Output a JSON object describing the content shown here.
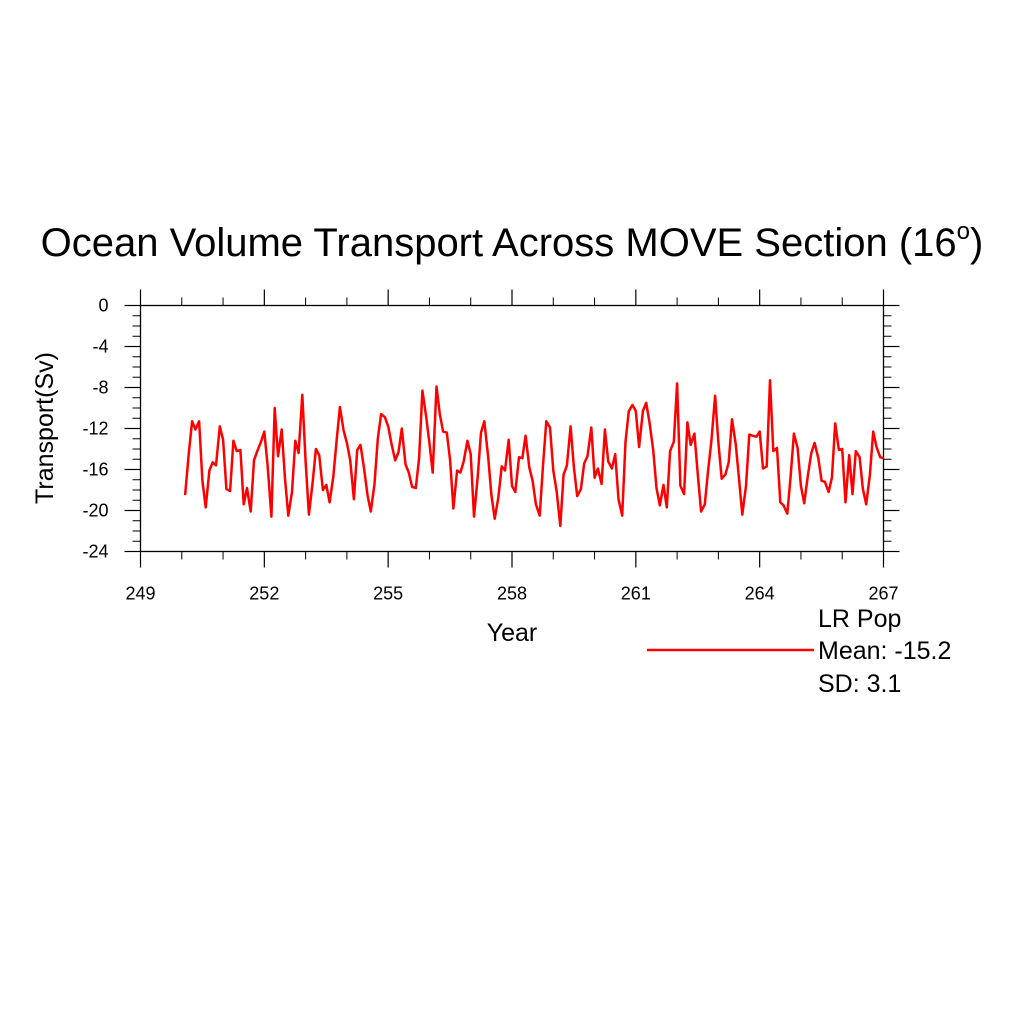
{
  "chart_data": {
    "type": "line",
    "title": "Ocean Volume Transport Across MOVE Section (16",
    "title_degree": "o",
    "title_close": ")",
    "xlabel": "Year",
    "ylabel": "Transport(Sv)",
    "xlim": [
      249,
      267
    ],
    "ylim": [
      -24,
      0
    ],
    "xticks": [
      249,
      252,
      255,
      258,
      261,
      264,
      267
    ],
    "yticks": [
      0,
      -4,
      -8,
      -12,
      -16,
      -20,
      -24
    ],
    "grid": false,
    "legend": {
      "placement": "bottom-right",
      "label": "LR Pop",
      "mean_text": "Mean: -15.2",
      "sd_text": "SD: 3.1"
    },
    "series": [
      {
        "name": "LR Pop",
        "color": "#ff0000",
        "x": [
          250.08,
          250.17,
          250.25,
          250.33,
          250.42,
          250.5,
          250.58,
          250.67,
          250.75,
          250.83,
          250.92,
          251.0,
          251.08,
          251.17,
          251.25,
          251.33,
          251.42,
          251.5,
          251.58,
          251.67,
          251.75,
          251.83,
          251.92,
          252.0,
          252.08,
          252.17,
          252.25,
          252.33,
          252.42,
          252.5,
          252.58,
          252.67,
          252.75,
          252.83,
          252.92,
          253.0,
          253.08,
          253.17,
          253.25,
          253.33,
          253.42,
          253.5,
          253.58,
          253.67,
          253.75,
          253.83,
          253.92,
          254.0,
          254.08,
          254.17,
          254.25,
          254.33,
          254.42,
          254.5,
          254.58,
          254.67,
          254.75,
          254.83,
          254.92,
          255.0,
          255.08,
          255.17,
          255.25,
          255.33,
          255.42,
          255.5,
          255.58,
          255.67,
          255.75,
          255.83,
          255.92,
          256.0,
          256.08,
          256.17,
          256.25,
          256.33,
          256.42,
          256.5,
          256.58,
          256.67,
          256.75,
          256.83,
          256.92,
          257.0,
          257.08,
          257.17,
          257.25,
          257.33,
          257.42,
          257.5,
          257.58,
          257.67,
          257.75,
          257.83,
          257.92,
          258.0,
          258.08,
          258.17,
          258.25,
          258.33,
          258.42,
          258.5,
          258.58,
          258.67,
          258.75,
          258.83,
          258.92,
          259.0,
          259.08,
          259.17,
          259.25,
          259.33,
          259.42,
          259.5,
          259.58,
          259.67,
          259.75,
          259.83,
          259.92,
          260.0,
          260.08,
          260.17,
          260.25,
          260.33,
          260.42,
          260.5,
          260.58,
          260.67,
          260.75,
          260.83,
          260.92,
          261.0,
          261.08,
          261.17,
          261.25,
          261.33,
          261.42,
          261.5,
          261.58,
          261.67,
          261.75,
          261.83,
          261.92,
          262.0,
          262.08,
          262.17,
          262.25,
          262.33,
          262.42,
          262.5,
          262.58,
          262.67,
          262.75,
          262.83,
          262.92,
          263.0,
          263.08,
          263.17,
          263.25,
          263.33,
          263.42,
          263.5,
          263.58,
          263.67,
          263.75,
          263.83,
          263.92,
          264.0,
          264.08,
          264.17,
          264.25,
          264.33,
          264.42,
          264.5,
          264.58,
          264.67,
          264.75,
          264.83,
          264.92,
          265.0,
          265.08,
          265.17,
          265.25,
          265.33,
          265.42,
          265.5,
          265.58,
          265.67,
          265.75,
          265.83,
          265.92,
          266.0,
          266.08,
          266.17,
          266.25,
          266.33,
          266.42,
          266.5,
          266.58,
          266.67,
          266.75,
          266.83,
          266.92,
          267.0
        ],
        "y": [
          -18.5,
          -14.4,
          -11.3,
          -12.1,
          -11.3,
          -17.1,
          -19.7,
          -16.1,
          -15.3,
          -15.6,
          -11.8,
          -13.1,
          -17.9,
          -18.1,
          -13.2,
          -14.2,
          -14.1,
          -19.4,
          -17.8,
          -20.1,
          -15.1,
          -14.2,
          -13.3,
          -12.3,
          -15.6,
          -20.6,
          -10.0,
          -14.7,
          -12.1,
          -16.9,
          -20.5,
          -18.2,
          -13.2,
          -14.4,
          -8.7,
          -15.2,
          -20.4,
          -17.3,
          -14.0,
          -14.6,
          -18.0,
          -17.5,
          -19.2,
          -16.7,
          -13.2,
          -9.9,
          -12.2,
          -13.4,
          -15.1,
          -18.9,
          -14.1,
          -13.6,
          -16.0,
          -18.5,
          -20.1,
          -17.4,
          -13.0,
          -10.6,
          -10.9,
          -11.8,
          -13.5,
          -15.1,
          -14.3,
          -12.0,
          -15.5,
          -16.3,
          -17.7,
          -17.8,
          -14.9,
          -8.3,
          -10.8,
          -13.4,
          -16.3,
          -7.9,
          -10.6,
          -12.3,
          -12.4,
          -15.1,
          -19.8,
          -16.1,
          -16.3,
          -15.2,
          -13.2,
          -14.5,
          -20.6,
          -16.7,
          -12.4,
          -11.3,
          -14.7,
          -18.5,
          -20.8,
          -18.7,
          -15.7,
          -16.1,
          -13.1,
          -17.6,
          -18.2,
          -14.8,
          -14.9,
          -12.7,
          -15.8,
          -17.1,
          -19.4,
          -20.5,
          -15.6,
          -11.3,
          -11.9,
          -16.1,
          -18.1,
          -21.5,
          -16.5,
          -15.6,
          -11.8,
          -15.8,
          -18.6,
          -17.9,
          -15.4,
          -14.7,
          -11.9,
          -16.8,
          -15.9,
          -17.4,
          -12.1,
          -15.2,
          -15.9,
          -14.5,
          -18.9,
          -20.5,
          -13.3,
          -10.3,
          -9.7,
          -10.3,
          -13.8,
          -10.3,
          -9.5,
          -11.4,
          -14.1,
          -17.8,
          -19.5,
          -17.5,
          -19.7,
          -14.2,
          -13.3,
          -7.6,
          -17.6,
          -18.4,
          -11.4,
          -13.6,
          -12.5,
          -16.5,
          -20.1,
          -19.4,
          -16.1,
          -13.2,
          -8.8,
          -13.4,
          -16.9,
          -16.5,
          -15.3,
          -11.1,
          -13.5,
          -16.9,
          -20.4,
          -17.6,
          -12.6,
          -12.7,
          -12.8,
          -12.3,
          -15.9,
          -15.7,
          -7.3,
          -14.2,
          -13.9,
          -19.2,
          -19.5,
          -20.3,
          -16.7,
          -12.5,
          -13.9,
          -17.6,
          -19.3,
          -16.5,
          -14.4,
          -13.4,
          -14.9,
          -17.1,
          -17.2,
          -18.2,
          -16.8,
          -11.5,
          -14.1,
          -14.0,
          -19.2,
          -14.6,
          -18.4,
          -14.2,
          -14.8,
          -17.9,
          -19.4,
          -16.5,
          -12.3,
          -13.8,
          -14.8,
          -14.9
        ]
      }
    ]
  }
}
